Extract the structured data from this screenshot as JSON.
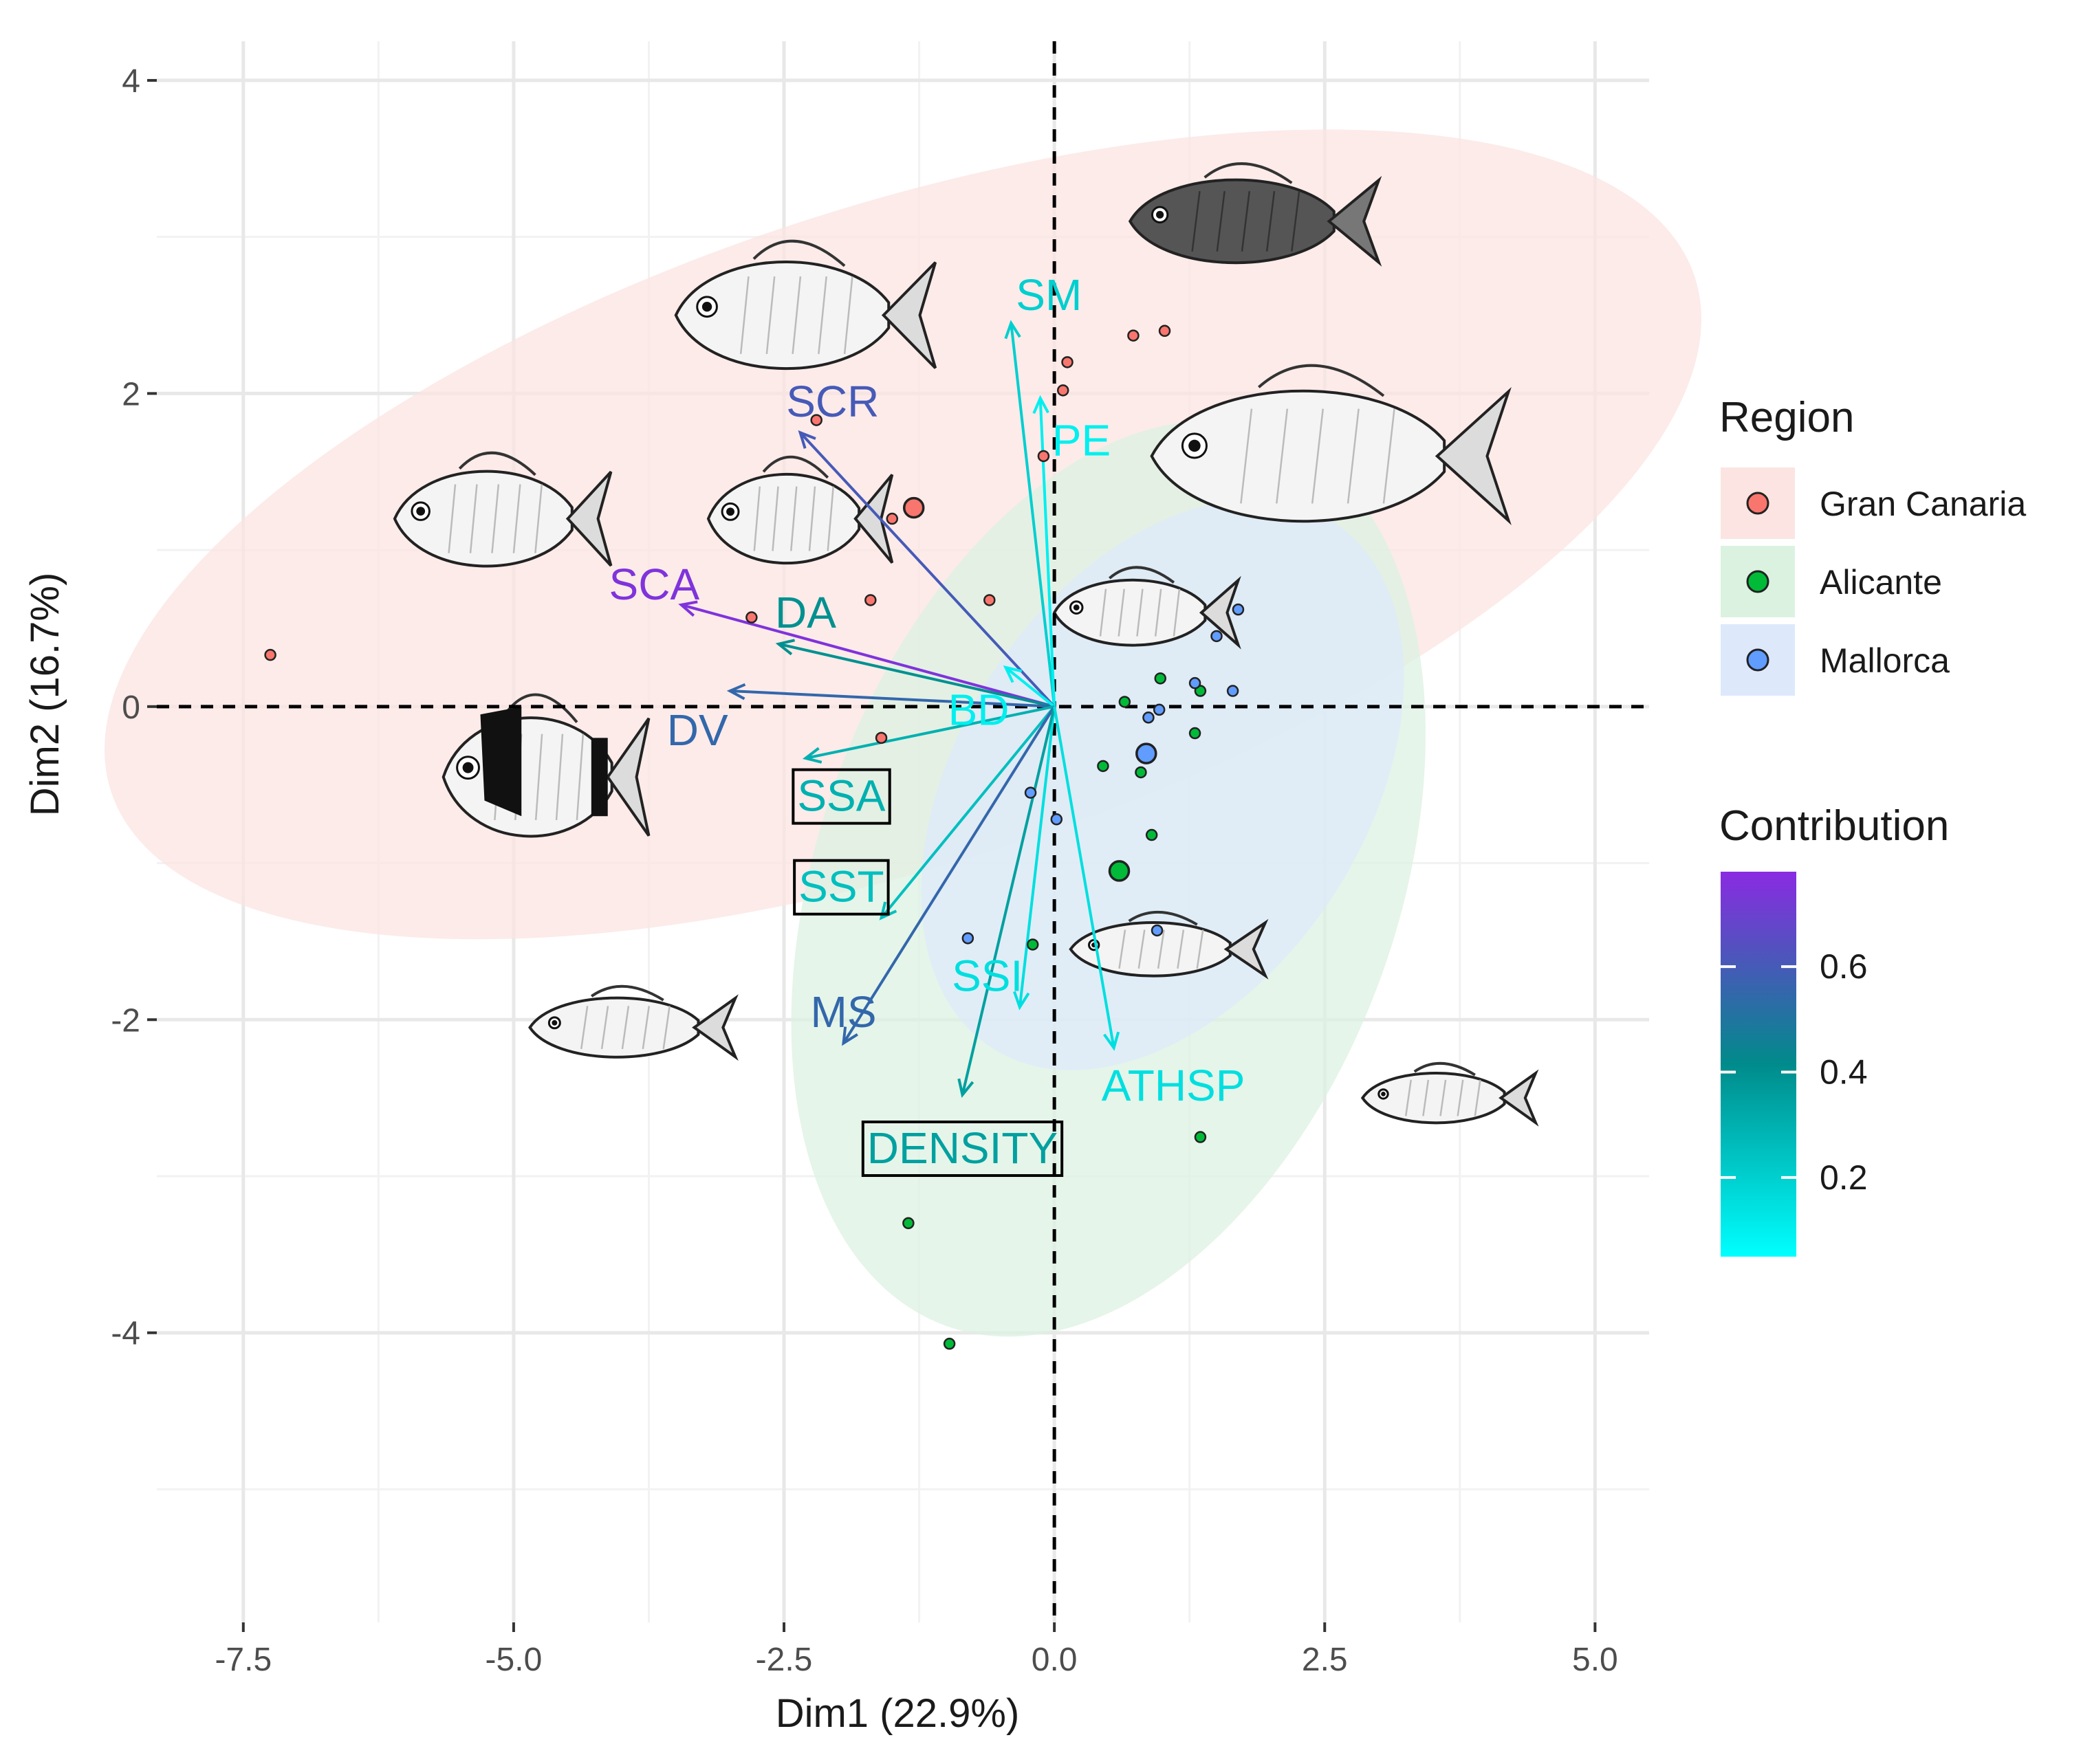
{
  "chart_data": {
    "type": "scatter",
    "subtype": "pca-biplot",
    "xlabel": "Dim1 (22.9%)",
    "ylabel": "Dim2 (16.7%)",
    "xlim": [
      -8.3,
      5.5
    ],
    "ylim": [
      -5.85,
      4.25
    ],
    "x_ticks": [
      -7.5,
      -5.0,
      -2.5,
      0.0,
      2.5,
      5.0
    ],
    "x_tick_labels": [
      "-7.5",
      "-5.0",
      "-2.5",
      "0.0",
      "2.5",
      "5.0"
    ],
    "y_ticks": [
      -4,
      -2,
      0,
      2,
      4
    ],
    "y_tick_labels": [
      "-4",
      "-2",
      "0",
      "2",
      "4"
    ],
    "grid": true,
    "reference_lines": "dashed lines at x=0 and y=0",
    "regions": {
      "title": "Region",
      "items": [
        {
          "name": "Gran Canaria",
          "color": "#f8766d",
          "fill": "#fbe4e1"
        },
        {
          "name": "Alicante",
          "color": "#00ba38",
          "fill": "#dcf2e1"
        },
        {
          "name": "Mallorca",
          "color": "#619cff",
          "fill": "#dde9fb"
        }
      ]
    },
    "ellipses": [
      {
        "region": "Gran Canaria",
        "cx": -1.4,
        "cy": 1.1,
        "rx": 7.7,
        "ry": 2.1,
        "angle_deg": 18
      },
      {
        "region": "Alicante",
        "cx": 0.5,
        "cy": -1.1,
        "rx": 4.4,
        "ry": 1.85,
        "angle_deg": 70
      },
      {
        "region": "Mallorca",
        "cx": 1.0,
        "cy": -0.5,
        "rx": 2.9,
        "ry": 1.3,
        "angle_deg": 57
      }
    ],
    "points": [
      {
        "region": "Gran Canaria",
        "x": -7.25,
        "y": 0.33
      },
      {
        "region": "Gran Canaria",
        "x": -2.2,
        "y": 1.83
      },
      {
        "region": "Gran Canaria",
        "x": -2.8,
        "y": 0.57
      },
      {
        "region": "Gran Canaria",
        "x": -1.7,
        "y": 0.68
      },
      {
        "region": "Gran Canaria",
        "x": -1.5,
        "y": 1.2
      },
      {
        "region": "Gran Canaria",
        "x": -1.3,
        "y": 1.27,
        "centroid": true
      },
      {
        "region": "Gran Canaria",
        "x": -0.6,
        "y": 0.68
      },
      {
        "region": "Gran Canaria",
        "x": -1.6,
        "y": -0.2
      },
      {
        "region": "Gran Canaria",
        "x": -0.1,
        "y": 1.6
      },
      {
        "region": "Gran Canaria",
        "x": 0.08,
        "y": 2.02
      },
      {
        "region": "Gran Canaria",
        "x": 0.12,
        "y": 2.2
      },
      {
        "region": "Gran Canaria",
        "x": 0.73,
        "y": 2.37
      },
      {
        "region": "Gran Canaria",
        "x": 1.02,
        "y": 2.4
      },
      {
        "region": "Alicante",
        "x": 0.65,
        "y": 0.03
      },
      {
        "region": "Alicante",
        "x": 0.98,
        "y": 0.18
      },
      {
        "region": "Alicante",
        "x": 1.35,
        "y": 0.1
      },
      {
        "region": "Alicante",
        "x": 1.3,
        "y": -0.17
      },
      {
        "region": "Alicante",
        "x": 0.45,
        "y": -0.38
      },
      {
        "region": "Alicante",
        "x": 0.8,
        "y": -0.42
      },
      {
        "region": "Alicante",
        "x": 0.9,
        "y": -0.82
      },
      {
        "region": "Alicante",
        "x": 0.6,
        "y": -1.05,
        "centroid": true
      },
      {
        "region": "Alicante",
        "x": -0.2,
        "y": -1.52
      },
      {
        "region": "Alicante",
        "x": 1.35,
        "y": -2.75
      },
      {
        "region": "Alicante",
        "x": -1.35,
        "y": -3.3
      },
      {
        "region": "Alicante",
        "x": -0.97,
        "y": -4.07
      },
      {
        "region": "Mallorca",
        "x": 1.7,
        "y": 0.62
      },
      {
        "region": "Mallorca",
        "x": 1.5,
        "y": 0.45
      },
      {
        "region": "Mallorca",
        "x": 1.65,
        "y": 0.1
      },
      {
        "region": "Mallorca",
        "x": 1.3,
        "y": 0.15
      },
      {
        "region": "Mallorca",
        "x": 0.97,
        "y": -0.02
      },
      {
        "region": "Mallorca",
        "x": 0.87,
        "y": -0.07
      },
      {
        "region": "Mallorca",
        "x": 0.85,
        "y": -0.3,
        "centroid": true
      },
      {
        "region": "Mallorca",
        "x": -0.22,
        "y": -0.55
      },
      {
        "region": "Mallorca",
        "x": 0.02,
        "y": -0.72
      },
      {
        "region": "Mallorca",
        "x": -0.8,
        "y": -1.48
      },
      {
        "region": "Mallorca",
        "x": 0.95,
        "y": -1.43
      }
    ],
    "variables": [
      {
        "name": "SM",
        "x": -0.4,
        "y": 2.45,
        "contrib": 0.2,
        "boxed": false,
        "label_x": -0.05,
        "label_y": 2.63
      },
      {
        "name": "PE",
        "x": -0.13,
        "y": 1.97,
        "contrib": 0.1,
        "boxed": false,
        "label_x": 0.25,
        "label_y": 1.7
      },
      {
        "name": "SCR",
        "x": -2.35,
        "y": 1.75,
        "contrib": 0.6,
        "boxed": false,
        "label_x": -2.05,
        "label_y": 1.95
      },
      {
        "name": "SCA",
        "x": -3.45,
        "y": 0.65,
        "contrib": 0.75,
        "boxed": false,
        "label_x": -3.7,
        "label_y": 0.78
      },
      {
        "name": "DA",
        "x": -2.55,
        "y": 0.4,
        "contrib": 0.4,
        "boxed": false,
        "label_x": -2.3,
        "label_y": 0.6
      },
      {
        "name": "DV",
        "x": -3.0,
        "y": 0.1,
        "contrib": 0.55,
        "boxed": false,
        "label_x": -3.3,
        "label_y": -0.15
      },
      {
        "name": "BD",
        "x": -0.45,
        "y": 0.25,
        "contrib": 0.1,
        "boxed": false,
        "label_x": -0.7,
        "label_y": -0.02
      },
      {
        "name": "SSA",
        "x": -2.3,
        "y": -0.33,
        "contrib": 0.3,
        "boxed": true,
        "label_x": -1.97,
        "label_y": -0.57
      },
      {
        "name": "SST",
        "x": -1.6,
        "y": -1.35,
        "contrib": 0.25,
        "boxed": true,
        "label_x": -1.97,
        "label_y": -1.15
      },
      {
        "name": "MS",
        "x": -1.95,
        "y": -2.15,
        "contrib": 0.55,
        "boxed": false,
        "label_x": -1.95,
        "label_y": -1.95
      },
      {
        "name": "SSI",
        "x": -0.32,
        "y": -1.92,
        "contrib": 0.15,
        "boxed": false,
        "label_x": -0.62,
        "label_y": -1.72
      },
      {
        "name": "DENSITY",
        "x": -0.85,
        "y": -2.48,
        "contrib": 0.35,
        "boxed": true,
        "label_x": -0.85,
        "label_y": -2.82
      },
      {
        "name": "ATHSP",
        "x": 0.55,
        "y": -2.18,
        "contrib": 0.15,
        "boxed": false,
        "label_x": 1.1,
        "label_y": -2.42
      }
    ],
    "contribution_legend": {
      "title": "Contribution",
      "range": [
        0.05,
        0.78
      ],
      "ticks": [
        0.2,
        0.4,
        0.6
      ],
      "tick_labels": [
        "0.2",
        "0.4",
        "0.6"
      ],
      "colors": [
        "#00ffff",
        "#008b8b",
        "#8a2be2"
      ]
    },
    "fish_illustrations": [
      {
        "kind": "pufferfish",
        "x": 1.85,
        "y": 3.1,
        "w": 2.3,
        "h": 0.7
      },
      {
        "kind": "parrotfish",
        "x": -2.3,
        "y": 2.5,
        "w": 2.4,
        "h": 0.9
      },
      {
        "kind": "seabream",
        "x": 2.55,
        "y": 1.6,
        "w": 3.3,
        "h": 1.1
      },
      {
        "kind": "seabream",
        "x": -5.1,
        "y": 1.2,
        "w": 2.0,
        "h": 0.8
      },
      {
        "kind": "seabream",
        "x": -2.35,
        "y": 1.2,
        "w": 1.7,
        "h": 0.75
      },
      {
        "kind": "damselfish",
        "x": -4.7,
        "y": -0.45,
        "w": 1.9,
        "h": 1.0
      },
      {
        "kind": "slender",
        "x": 0.85,
        "y": 0.6,
        "w": 1.7,
        "h": 0.55
      },
      {
        "kind": "grunt",
        "x": 1.05,
        "y": -1.55,
        "w": 1.8,
        "h": 0.45
      },
      {
        "kind": "grunt",
        "x": -3.9,
        "y": -2.05,
        "w": 1.9,
        "h": 0.5
      },
      {
        "kind": "sardine",
        "x": 3.65,
        "y": -2.5,
        "w": 1.6,
        "h": 0.42
      }
    ]
  }
}
